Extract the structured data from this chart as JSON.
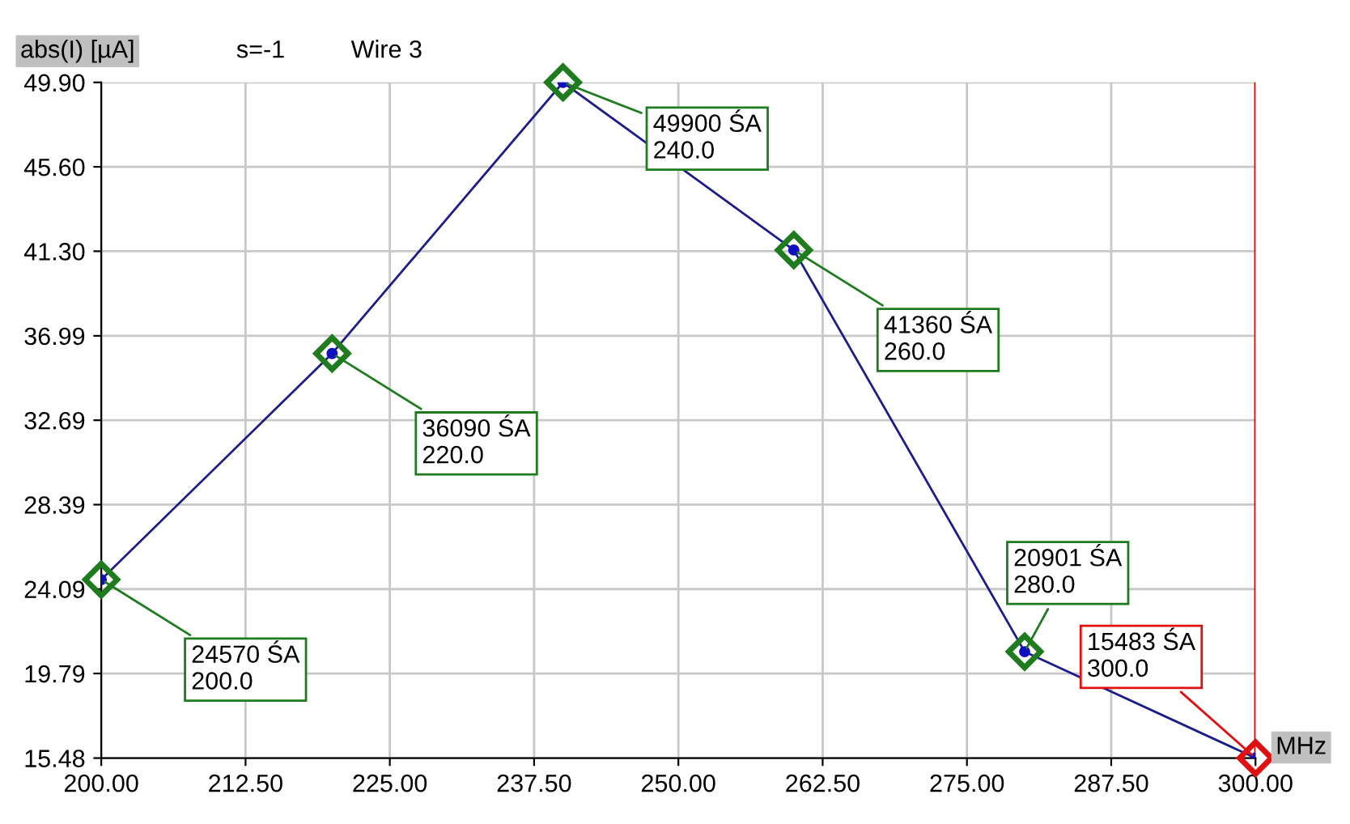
{
  "chart_data": {
    "type": "line",
    "title": "Wire 3",
    "subtitle": "s=-1",
    "ylabel": "abs(I) [µA]",
    "xlabel": "MHz",
    "x": [
      200,
      220,
      240,
      260,
      280,
      300
    ],
    "series": [
      {
        "color": "#1c1c8c",
        "colors": [
          "#1e7b1e",
          "#1e7b1e",
          "#1e7b1e",
          "#1e7b1e",
          "#1e7b1e",
          "#e01010"
        ],
        "values": [
          24.57,
          36.09,
          49.9,
          41.36,
          20.901,
          15.483
        ]
      }
    ],
    "xlim": [
      200,
      300
    ],
    "ylim": [
      15.48,
      49.9
    ],
    "xticks": [
      {
        "value": 200,
        "label": "200.00"
      },
      {
        "value": 212.5,
        "label": "212.50"
      },
      {
        "value": 225,
        "label": "225.00"
      },
      {
        "value": 237.5,
        "label": "237.50"
      },
      {
        "value": 250,
        "label": "250.00"
      },
      {
        "value": 262.5,
        "label": "262.50"
      },
      {
        "value": 275,
        "label": "275.00"
      },
      {
        "value": 287.5,
        "label": "287.50"
      },
      {
        "value": 300,
        "label": "300.00"
      }
    ],
    "yticks": [
      15.48,
      19.79,
      24.09,
      28.39,
      32.69,
      36.99,
      {
        "value": 41.3,
        "label": "41.30"
      },
      {
        "value": 45.6,
        "label": "45.60"
      },
      {
        "value": 49.9,
        "label": "49.90"
      }
    ],
    "annotations": [
      {
        "text": "24570 ŚA\n200.0",
        "x": 200,
        "y": 24.57
      },
      {
        "text": "36090 ŚA\n220.0",
        "x": 220,
        "y": 36.09
      },
      {
        "text": "49900 ŚA\n240.0",
        "x": 240,
        "y": 49.9
      },
      {
        "text": "41360 ŚA\n260.0",
        "x": 260,
        "y": 41.36
      },
      {
        "text": "20901 ŚA\n280.0",
        "x": 280,
        "y": 20.901
      },
      {
        "text": "15483 ŚA\n300.0",
        "x": 300,
        "y": 15.483
      }
    ],
    "ref_lines": [
      {
        "axis": "x",
        "value": 300,
        "color": "#d01010"
      }
    ],
    "grid": true,
    "marker": "diamond",
    "line_style": "solid"
  }
}
